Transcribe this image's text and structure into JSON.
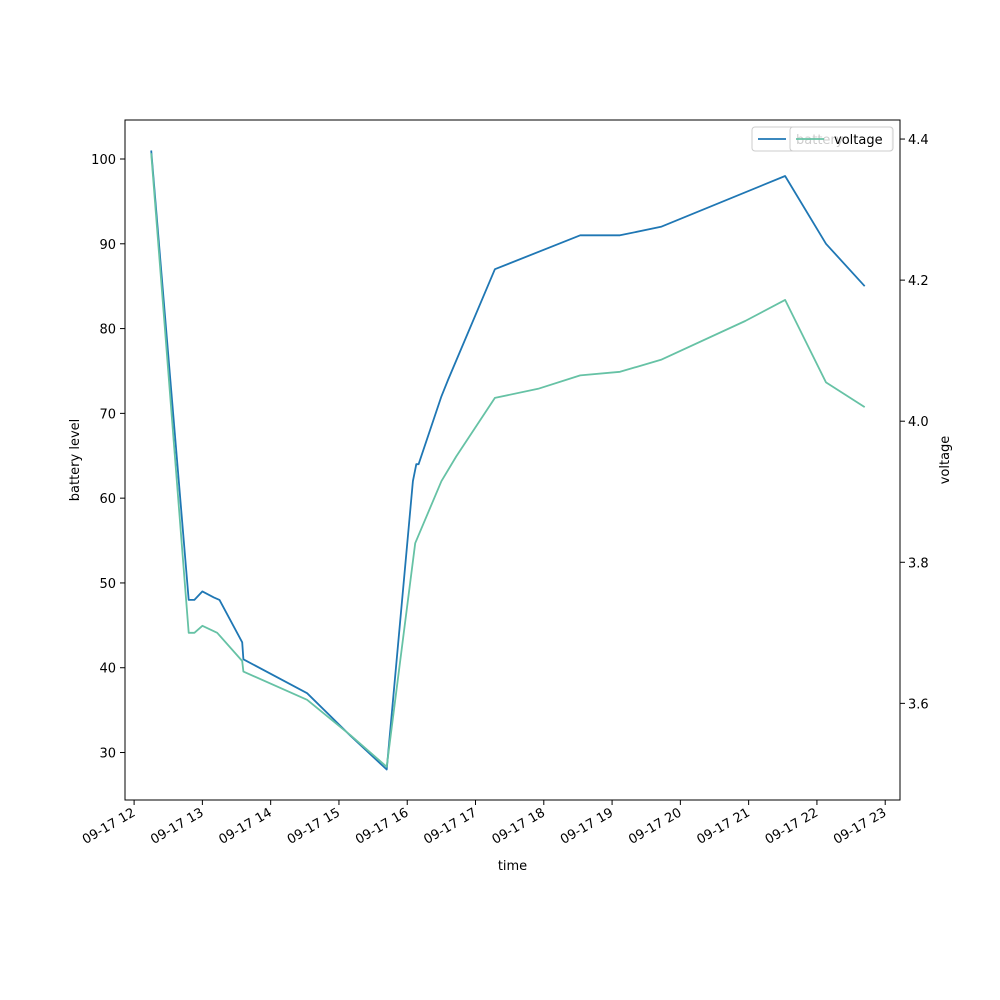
{
  "chart_data": {
    "type": "line",
    "title": "",
    "xlabel": "time",
    "ylabel": "battery level",
    "y2label": "voltage",
    "x_ticks": [
      "09-17 12",
      "09-17 13",
      "09-17 14",
      "09-17 15",
      "09-17 16",
      "09-17 17",
      "09-17 18",
      "09-17 19",
      "09-17 20",
      "09-17 21",
      "09-17 22",
      "09-17 23"
    ],
    "x_tick_times": [
      "09-17 12:00",
      "09-17 13:00",
      "09-17 14:00",
      "09-17 15:00",
      "09-17 16:00",
      "09-17 17:00",
      "09-17 18:00",
      "09-17 19:00",
      "09-17 20:00",
      "09-17 21:00",
      "09-17 22:00",
      "09-17 23:00"
    ],
    "xlim": [
      "09-17 11:52",
      "09-17 23:13"
    ],
    "ylim": [
      24.4,
      104.6
    ],
    "y_ticks": [
      30,
      40,
      50,
      60,
      70,
      80,
      90,
      100
    ],
    "y2lim": [
      3.463,
      4.427
    ],
    "y2_ticks": [
      "3.6",
      "3.8",
      "4.0",
      "4.2",
      "4.4"
    ],
    "y2_tick_values": [
      3.6,
      3.8,
      4.0,
      4.2,
      4.4
    ],
    "grid": false,
    "legend_position": "top-right",
    "colors": {
      "battery": "#1f77b4",
      "voltage": "#66c2a5"
    },
    "series": [
      {
        "name": "battery",
        "axis": "left",
        "x": [
          "09-17 12:15",
          "09-17 12:48",
          "09-17 12:53",
          "09-17 13:00",
          "09-17 13:10",
          "09-17 13:15",
          "09-17 13:35",
          "09-17 13:36",
          "09-17 14:32",
          "09-17 15:10",
          "09-17 15:42",
          "09-17 16:05",
          "09-17 16:08",
          "09-17 16:10",
          "09-17 16:30",
          "09-17 16:36",
          "09-17 17:17",
          "09-17 18:32",
          "09-17 19:07",
          "09-17 19:43",
          "09-17 21:32",
          "09-17 22:08",
          "09-17 22:42"
        ],
        "values": [
          101,
          48,
          48,
          49,
          48.3,
          48,
          43,
          41,
          37,
          32,
          28,
          62,
          64,
          64,
          72,
          74,
          87,
          91,
          91,
          92,
          98,
          90,
          85
        ]
      },
      {
        "name": "voltage",
        "axis": "right",
        "x": [
          "09-17 12:15",
          "09-17 12:48",
          "09-17 12:53",
          "09-17 13:00",
          "09-17 13:13",
          "09-17 13:35",
          "09-17 13:36",
          "09-17 14:32",
          "09-17 15:10",
          "09-17 15:42",
          "09-17 16:07",
          "09-17 16:30",
          "09-17 16:43",
          "09-17 17:17",
          "09-17 17:55",
          "09-17 18:32",
          "09-17 19:07",
          "09-17 19:43",
          "09-17 20:57",
          "09-17 21:32",
          "09-17 22:08",
          "09-17 22:42"
        ],
        "values": [
          4.38,
          3.7,
          3.7,
          3.71,
          3.7,
          3.66,
          3.645,
          3.605,
          3.555,
          3.51,
          3.827,
          3.915,
          3.95,
          4.033,
          4.046,
          4.065,
          4.07,
          4.087,
          4.142,
          4.172,
          4.055,
          4.02
        ]
      }
    ]
  }
}
